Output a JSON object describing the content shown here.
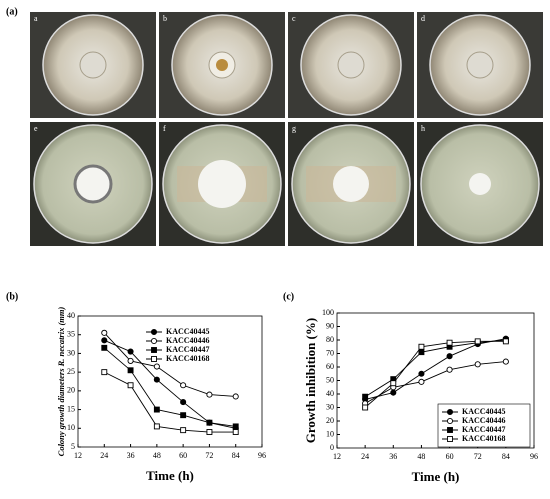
{
  "figure": {
    "panel_label": "(a)",
    "photo_labels": [
      "a",
      "b",
      "c",
      "d",
      "e",
      "f",
      "g",
      "h"
    ]
  },
  "chart_data": [
    {
      "type": "line",
      "panel_label": "(b)",
      "x_label": "Time (h)",
      "y_label": "Colony growth diameters R. necatrix (mm)",
      "x": [
        24,
        36,
        48,
        60,
        72,
        84
      ],
      "xlim": [
        12,
        96
      ],
      "xticks": [
        12,
        24,
        36,
        48,
        60,
        72,
        84,
        96
      ],
      "ylim": [
        5,
        40
      ],
      "yticks": [
        5,
        10,
        15,
        20,
        25,
        30,
        35,
        40
      ],
      "legend": "upper right",
      "series": [
        {
          "name": "KACC40445",
          "color": "#000000",
          "marker": "circle",
          "filled": true,
          "values": [
            33.5,
            30.5,
            23,
            17,
            11.5,
            10
          ]
        },
        {
          "name": "KACC40446",
          "color": "#000000",
          "marker": "circle",
          "filled": false,
          "values": [
            35.5,
            28,
            26.5,
            21.5,
            19,
            18.5
          ]
        },
        {
          "name": "KACC40447",
          "color": "#000000",
          "marker": "square",
          "filled": true,
          "values": [
            31.5,
            25.5,
            15,
            13.5,
            11.5,
            10.5
          ]
        },
        {
          "name": "KACC40168",
          "color": "#000000",
          "marker": "square",
          "filled": false,
          "values": [
            25,
            21.5,
            10.5,
            9.5,
            9,
            9
          ]
        }
      ]
    },
    {
      "type": "line",
      "panel_label": "(c)",
      "x_label": "Time (h)",
      "y_label": "Growth inhibition (%)",
      "x": [
        24,
        36,
        48,
        60,
        72,
        84
      ],
      "xlim": [
        12,
        96
      ],
      "xticks": [
        12,
        24,
        36,
        48,
        60,
        72,
        84,
        96
      ],
      "ylim": [
        0,
        100
      ],
      "yticks": [
        0,
        10,
        20,
        30,
        40,
        50,
        60,
        70,
        80,
        90,
        100
      ],
      "legend": "lower right",
      "series": [
        {
          "name": "KACC40445",
          "color": "#000000",
          "marker": "circle",
          "filled": true,
          "values": [
            36,
            41,
            55,
            68,
            77,
            81
          ]
        },
        {
          "name": "KACC40446",
          "color": "#000000",
          "marker": "circle",
          "filled": false,
          "values": [
            33,
            45,
            49,
            58,
            62,
            64
          ]
        },
        {
          "name": "KACC40447",
          "color": "#000000",
          "marker": "square",
          "filled": true,
          "values": [
            38,
            51,
            71,
            75,
            78,
            80
          ]
        },
        {
          "name": "KACC40168",
          "color": "#000000",
          "marker": "square",
          "filled": false,
          "values": [
            30,
            48,
            75,
            78,
            79,
            79
          ]
        }
      ]
    }
  ]
}
